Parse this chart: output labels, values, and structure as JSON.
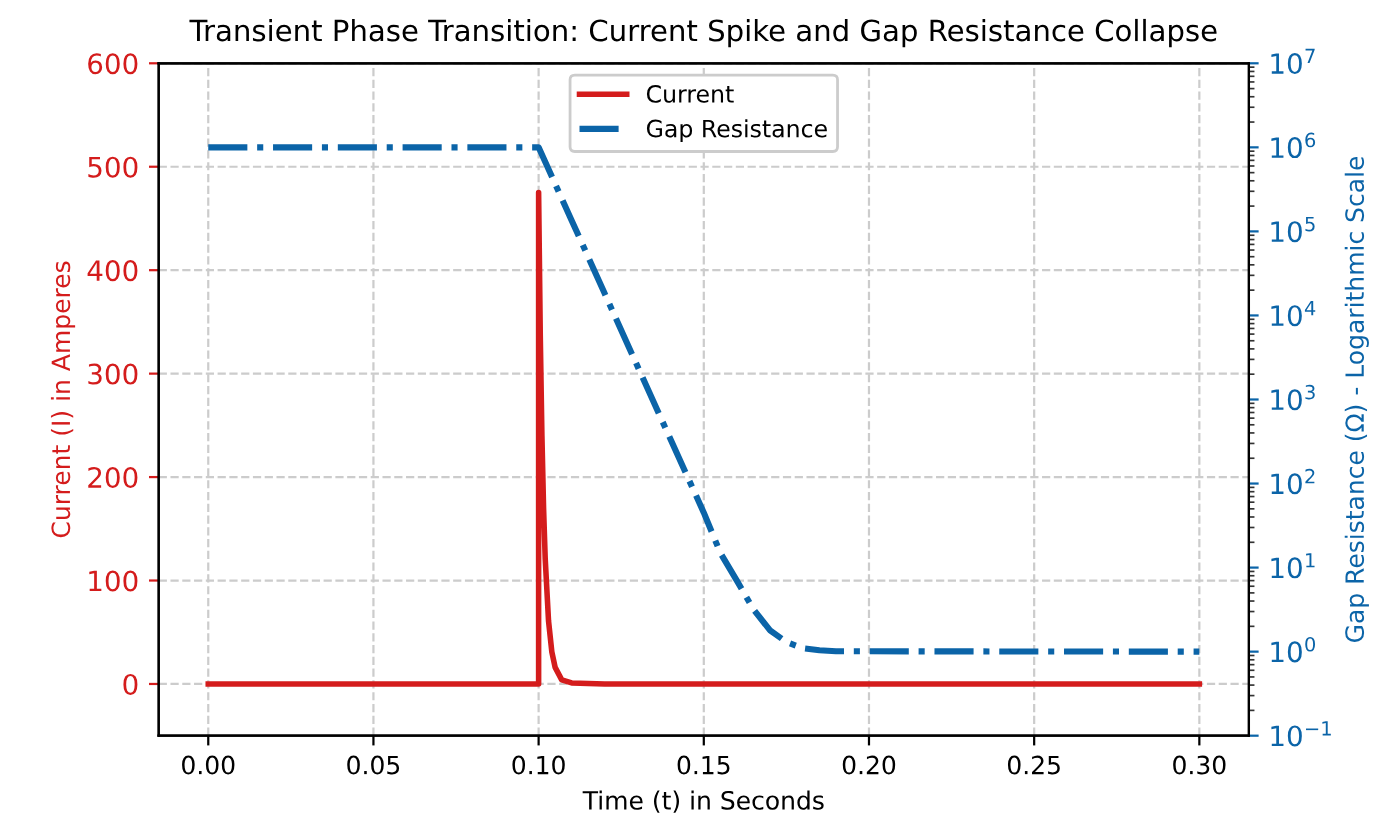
{
  "chart_data": {
    "type": "line",
    "title": "Transient Phase Transition: Current Spike and Gap Resistance Collapse",
    "xlabel": "Time (t) in Seconds",
    "ylabel": "Current (I) in Amperes",
    "y2label": "Gap Resistance (Ω) - Logarithmic Scale",
    "log": "y2",
    "grid": true,
    "legend": "top",
    "line_style": "solid",
    "marker": "none",
    "xlim": [
      -0.015,
      0.315
    ],
    "xticks": [
      {
        "value": 0,
        "label": "0.00"
      },
      {
        "value": 0.05,
        "label": "0.05"
      },
      {
        "value": 0.1,
        "label": "0.10"
      },
      {
        "value": 0.15,
        "label": "0.15"
      },
      {
        "value": 0.2,
        "label": "0.20"
      },
      {
        "value": 0.25,
        "label": "0.25"
      },
      {
        "value": 0.3,
        "label": "0.30"
      }
    ],
    "ylim": [
      -50,
      600
    ],
    "yticks": [
      0,
      100,
      200,
      300,
      400,
      500,
      600
    ],
    "y2lim": [
      0.1,
      10000000
    ],
    "y2ticks": [
      {
        "value": 0.1,
        "label": "10$^{−1}$"
      },
      {
        "value": 1,
        "label": "10$^{0}$"
      },
      {
        "value": 10,
        "label": "10$^{1}$"
      },
      {
        "value": 100,
        "label": "10$^{2}$"
      },
      {
        "value": 1000,
        "label": "10$^{3}$"
      },
      {
        "value": 10000,
        "label": "10$^{4}$"
      },
      {
        "value": 100000,
        "label": "10$^{5}$"
      },
      {
        "value": 1000000,
        "label": "10$^{6}$"
      },
      {
        "value": 10000000,
        "label": "10$^{7}$"
      }
    ],
    "series": [
      {
        "name": "Current",
        "color": "#d41c1c",
        "x": [
          0,
          0.1,
          0.1,
          0.1005,
          0.101,
          0.1015,
          0.102,
          0.103,
          0.104,
          0.105,
          0.107,
          0.11,
          0.12,
          0.3
        ],
        "values": [
          0,
          0,
          475,
          337,
          240,
          170,
          121,
          61,
          31,
          16,
          4,
          1,
          0,
          0
        ]
      },
      {
        "name": "Gap Resistance",
        "color": "#0b64a8",
        "axis": "y2",
        "line_style": "dashdot",
        "x": [
          0,
          0.1,
          0.11,
          0.12,
          0.13,
          0.14,
          0.15,
          0.155,
          0.16,
          0.165,
          0.17,
          0.175,
          0.18,
          0.185,
          0.19,
          0.3
        ],
        "values": [
          1000000,
          1000000,
          135000,
          18200,
          2450,
          331,
          45,
          15,
          7,
          3.2,
          1.8,
          1.3,
          1.1,
          1.04,
          1.01,
          1
        ]
      }
    ]
  }
}
